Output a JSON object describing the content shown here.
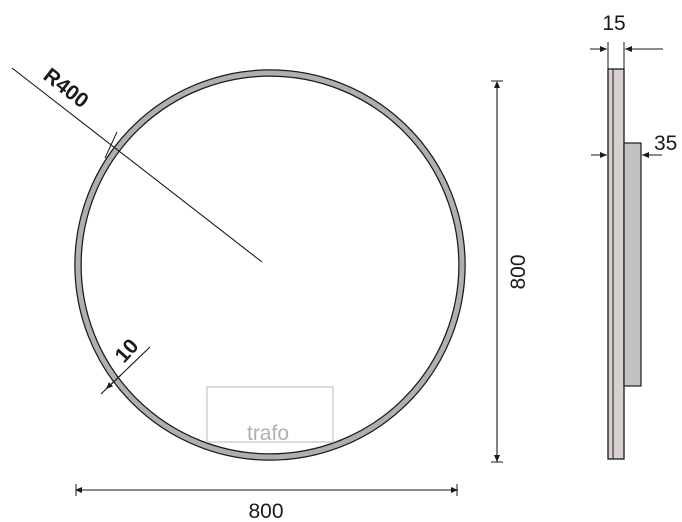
{
  "front_view": {
    "radius_label": "R400",
    "frame_width_label": "10",
    "trafo_label": "trafo",
    "width_label": "800",
    "height_label": "800"
  },
  "side_view": {
    "thickness_label": "15",
    "depth_label": "35"
  },
  "colors": {
    "line": "#1a1a1a",
    "frame_fill": "#b3aeae",
    "side_fill": "#d0c8c8",
    "trafo_box_fill": "#c2c2c2",
    "trafo_outline": "#c8c8c8"
  }
}
